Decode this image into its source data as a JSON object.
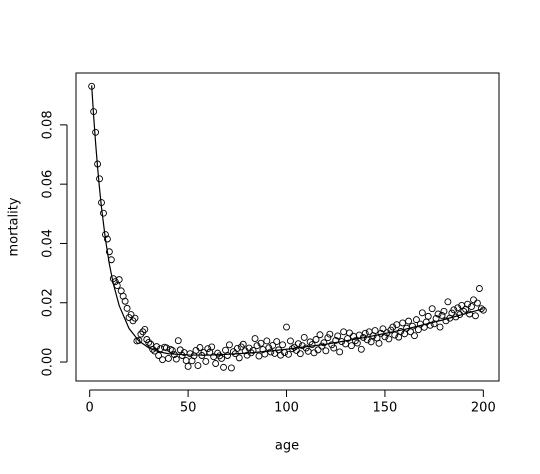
{
  "chart_data": {
    "type": "scatter",
    "xlabel": "age",
    "ylabel": "mortality",
    "xlim": [
      -6.96,
      207.96
    ],
    "ylim": [
      -0.0064,
      0.0975
    ],
    "xticks": [
      0,
      50,
      100,
      150,
      200
    ],
    "yticks": [
      {
        "value": 0,
        "label": "0.00"
      },
      {
        "value": 0.02,
        "label": "0.02"
      },
      {
        "value": 0.04,
        "label": "0.04"
      },
      {
        "value": 0.06,
        "label": "0.06"
      },
      {
        "value": 0.08,
        "label": "0.08"
      }
    ],
    "series": [
      {
        "type": "scatter",
        "color": "#000000",
        "x": [
          1,
          2,
          3,
          4,
          5,
          6,
          7,
          8,
          9,
          10,
          11,
          12,
          13,
          14,
          15,
          16,
          17,
          18,
          19,
          20,
          21,
          22,
          23,
          24,
          25,
          26,
          27,
          28,
          29,
          30,
          31,
          32,
          33,
          34,
          35,
          36,
          37,
          38,
          39,
          40,
          41,
          42,
          43,
          44,
          45,
          46,
          47,
          48,
          49,
          50,
          51,
          52,
          53,
          54,
          55,
          56,
          57,
          58,
          59,
          60,
          61,
          62,
          63,
          64,
          65,
          66,
          67,
          68,
          69,
          70,
          71,
          72,
          73,
          74,
          75,
          76,
          77,
          78,
          79,
          80,
          81,
          82,
          83,
          84,
          85,
          86,
          87,
          88,
          89,
          90,
          91,
          92,
          93,
          94,
          95,
          96,
          97,
          98,
          99,
          100,
          101,
          102,
          103,
          104,
          105,
          106,
          107,
          108,
          109,
          110,
          111,
          112,
          113,
          114,
          115,
          116,
          117,
          118,
          119,
          120,
          121,
          122,
          123,
          124,
          125,
          126,
          127,
          128,
          129,
          130,
          131,
          132,
          133,
          134,
          135,
          136,
          137,
          138,
          139,
          140,
          141,
          142,
          143,
          144,
          145,
          146,
          147,
          148,
          149,
          150,
          151,
          152,
          153,
          154,
          155,
          156,
          157,
          158,
          159,
          160,
          161,
          162,
          163,
          164,
          165,
          166,
          167,
          168,
          169,
          170,
          171,
          172,
          173,
          174,
          175,
          176,
          177,
          178,
          179,
          180,
          181,
          182,
          183,
          184,
          185,
          186,
          187,
          188,
          189,
          190,
          191,
          192,
          193,
          194,
          195,
          196,
          197,
          198,
          199,
          200
        ],
        "values": [
          0.093,
          0.0845,
          0.0775,
          0.0668,
          0.0618,
          0.0538,
          0.0502,
          0.043,
          0.0415,
          0.0372,
          0.0345,
          0.0281,
          0.0271,
          0.0258,
          0.0278,
          0.024,
          0.0222,
          0.0205,
          0.0181,
          0.015,
          0.016,
          0.0139,
          0.0148,
          0.0071,
          0.0073,
          0.0094,
          0.0102,
          0.011,
          0.0076,
          0.0066,
          0.006,
          0.0043,
          0.0037,
          0.0052,
          0.0022,
          0.0045,
          0.0008,
          0.005,
          0.0048,
          0.0012,
          0.0043,
          0.0039,
          0.0025,
          0.001,
          0.0072,
          0.0041,
          0.0022,
          0.0032,
          0.0005,
          -0.0015,
          0.0028,
          0.0004,
          0.0021,
          0.0039,
          -0.0012,
          0.0049,
          0.0022,
          0.0032,
          0.0002,
          0.0045,
          0.0033,
          0.0051,
          0.0018,
          -0.0005,
          0.003,
          0.0021,
          0.0012,
          -0.0018,
          0.004,
          0.0022,
          0.0058,
          -0.002,
          0.0035,
          0.0028,
          0.0046,
          0.0014,
          0.0051,
          0.006,
          0.0038,
          0.0023,
          0.0047,
          0.0031,
          0.0039,
          0.0079,
          0.0055,
          0.002,
          0.0063,
          0.0042,
          0.0027,
          0.0071,
          0.0048,
          0.0034,
          0.0056,
          0.0029,
          0.0069,
          0.0041,
          0.0023,
          0.0058,
          0.0032,
          0.0118,
          0.0026,
          0.0071,
          0.0045,
          0.005,
          0.0039,
          0.0062,
          0.0028,
          0.0055,
          0.0083,
          0.0047,
          0.0036,
          0.0068,
          0.0059,
          0.0031,
          0.0076,
          0.0041,
          0.0092,
          0.0054,
          0.0065,
          0.0038,
          0.0082,
          0.0094,
          0.0058,
          0.0047,
          0.0073,
          0.0088,
          0.0034,
          0.0069,
          0.0102,
          0.0061,
          0.0079,
          0.0098,
          0.0055,
          0.0087,
          0.0072,
          0.0064,
          0.0091,
          0.0043,
          0.0083,
          0.0097,
          0.0075,
          0.0102,
          0.0068,
          0.0089,
          0.0106,
          0.0081,
          0.0063,
          0.0097,
          0.0112,
          0.0085,
          0.0099,
          0.0078,
          0.0108,
          0.0118,
          0.0091,
          0.0126,
          0.0084,
          0.0103,
          0.0132,
          0.0095,
          0.0114,
          0.0138,
          0.0102,
          0.0121,
          0.0089,
          0.0143,
          0.0109,
          0.0128,
          0.0166,
          0.0117,
          0.0135,
          0.0154,
          0.0124,
          0.018,
          0.0129,
          0.0147,
          0.0162,
          0.0118,
          0.0157,
          0.0171,
          0.0139,
          0.0203,
          0.0148,
          0.0165,
          0.0176,
          0.0152,
          0.0183,
          0.016,
          0.0191,
          0.0171,
          0.0178,
          0.0195,
          0.0162,
          0.0187,
          0.021,
          0.0156,
          0.0199,
          0.0248,
          0.018,
          0.0175
        ]
      },
      {
        "type": "line",
        "color": "#000000",
        "x": [
          1,
          2,
          3,
          4,
          5,
          6,
          8,
          10,
          12,
          15,
          20,
          25,
          30,
          35,
          40,
          50,
          60,
          70,
          80,
          90,
          100,
          120,
          140,
          160,
          180,
          200
        ],
        "values": [
          0.0933,
          0.083,
          0.0739,
          0.0657,
          0.0585,
          0.0521,
          0.0414,
          0.033,
          0.0264,
          0.019,
          0.0113,
          0.0071,
          0.0048,
          0.0035,
          0.0028,
          0.0024,
          0.0023,
          0.0026,
          0.003,
          0.0036,
          0.0043,
          0.006,
          0.0083,
          0.011,
          0.0143,
          0.018
        ]
      }
    ]
  }
}
